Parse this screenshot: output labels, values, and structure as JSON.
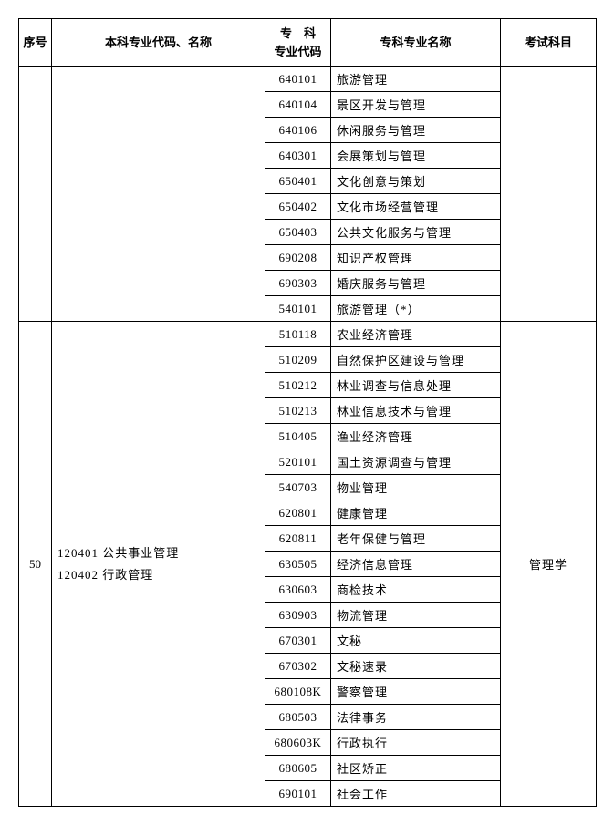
{
  "headers": {
    "idx": "序号",
    "major": "本科专业代码、名称",
    "code_l1": "专　科",
    "code_l2": "专业代码",
    "spec": "专科专业名称",
    "exam": "考试科目"
  },
  "section1": {
    "rows": [
      {
        "code": "640101",
        "spec": "旅游管理"
      },
      {
        "code": "640104",
        "spec": "景区开发与管理"
      },
      {
        "code": "640106",
        "spec": "休闲服务与管理"
      },
      {
        "code": "640301",
        "spec": "会展策划与管理"
      },
      {
        "code": "650401",
        "spec": "文化创意与策划"
      },
      {
        "code": "650402",
        "spec": "文化市场经营管理"
      },
      {
        "code": "650403",
        "spec": "公共文化服务与管理"
      },
      {
        "code": "690208",
        "spec": "知识产权管理"
      },
      {
        "code": "690303",
        "spec": "婚庆服务与管理"
      },
      {
        "code": "540101",
        "spec": "旅游管理（*）"
      }
    ]
  },
  "section2": {
    "idx": "50",
    "major_lines": [
      "120401 公共事业管理",
      "120402 行政管理"
    ],
    "exam": "管理学",
    "rows": [
      {
        "code": "510118",
        "spec": "农业经济管理"
      },
      {
        "code": "510209",
        "spec": "自然保护区建设与管理"
      },
      {
        "code": "510212",
        "spec": "林业调查与信息处理"
      },
      {
        "code": "510213",
        "spec": "林业信息技术与管理"
      },
      {
        "code": "510405",
        "spec": "渔业经济管理"
      },
      {
        "code": "520101",
        "spec": "国土资源调查与管理"
      },
      {
        "code": "540703",
        "spec": "物业管理"
      },
      {
        "code": "620801",
        "spec": "健康管理"
      },
      {
        "code": "620811",
        "spec": "老年保健与管理"
      },
      {
        "code": "630505",
        "spec": "经济信息管理"
      },
      {
        "code": "630603",
        "spec": "商检技术"
      },
      {
        "code": "630903",
        "spec": "物流管理"
      },
      {
        "code": "670301",
        "spec": "文秘"
      },
      {
        "code": "670302",
        "spec": "文秘速录"
      },
      {
        "code": "680108K",
        "spec": "警察管理"
      },
      {
        "code": "680503",
        "spec": "法律事务"
      },
      {
        "code": "680603K",
        "spec": "行政执行"
      },
      {
        "code": "680605",
        "spec": "社区矫正"
      },
      {
        "code": "690101",
        "spec": "社会工作"
      }
    ]
  }
}
